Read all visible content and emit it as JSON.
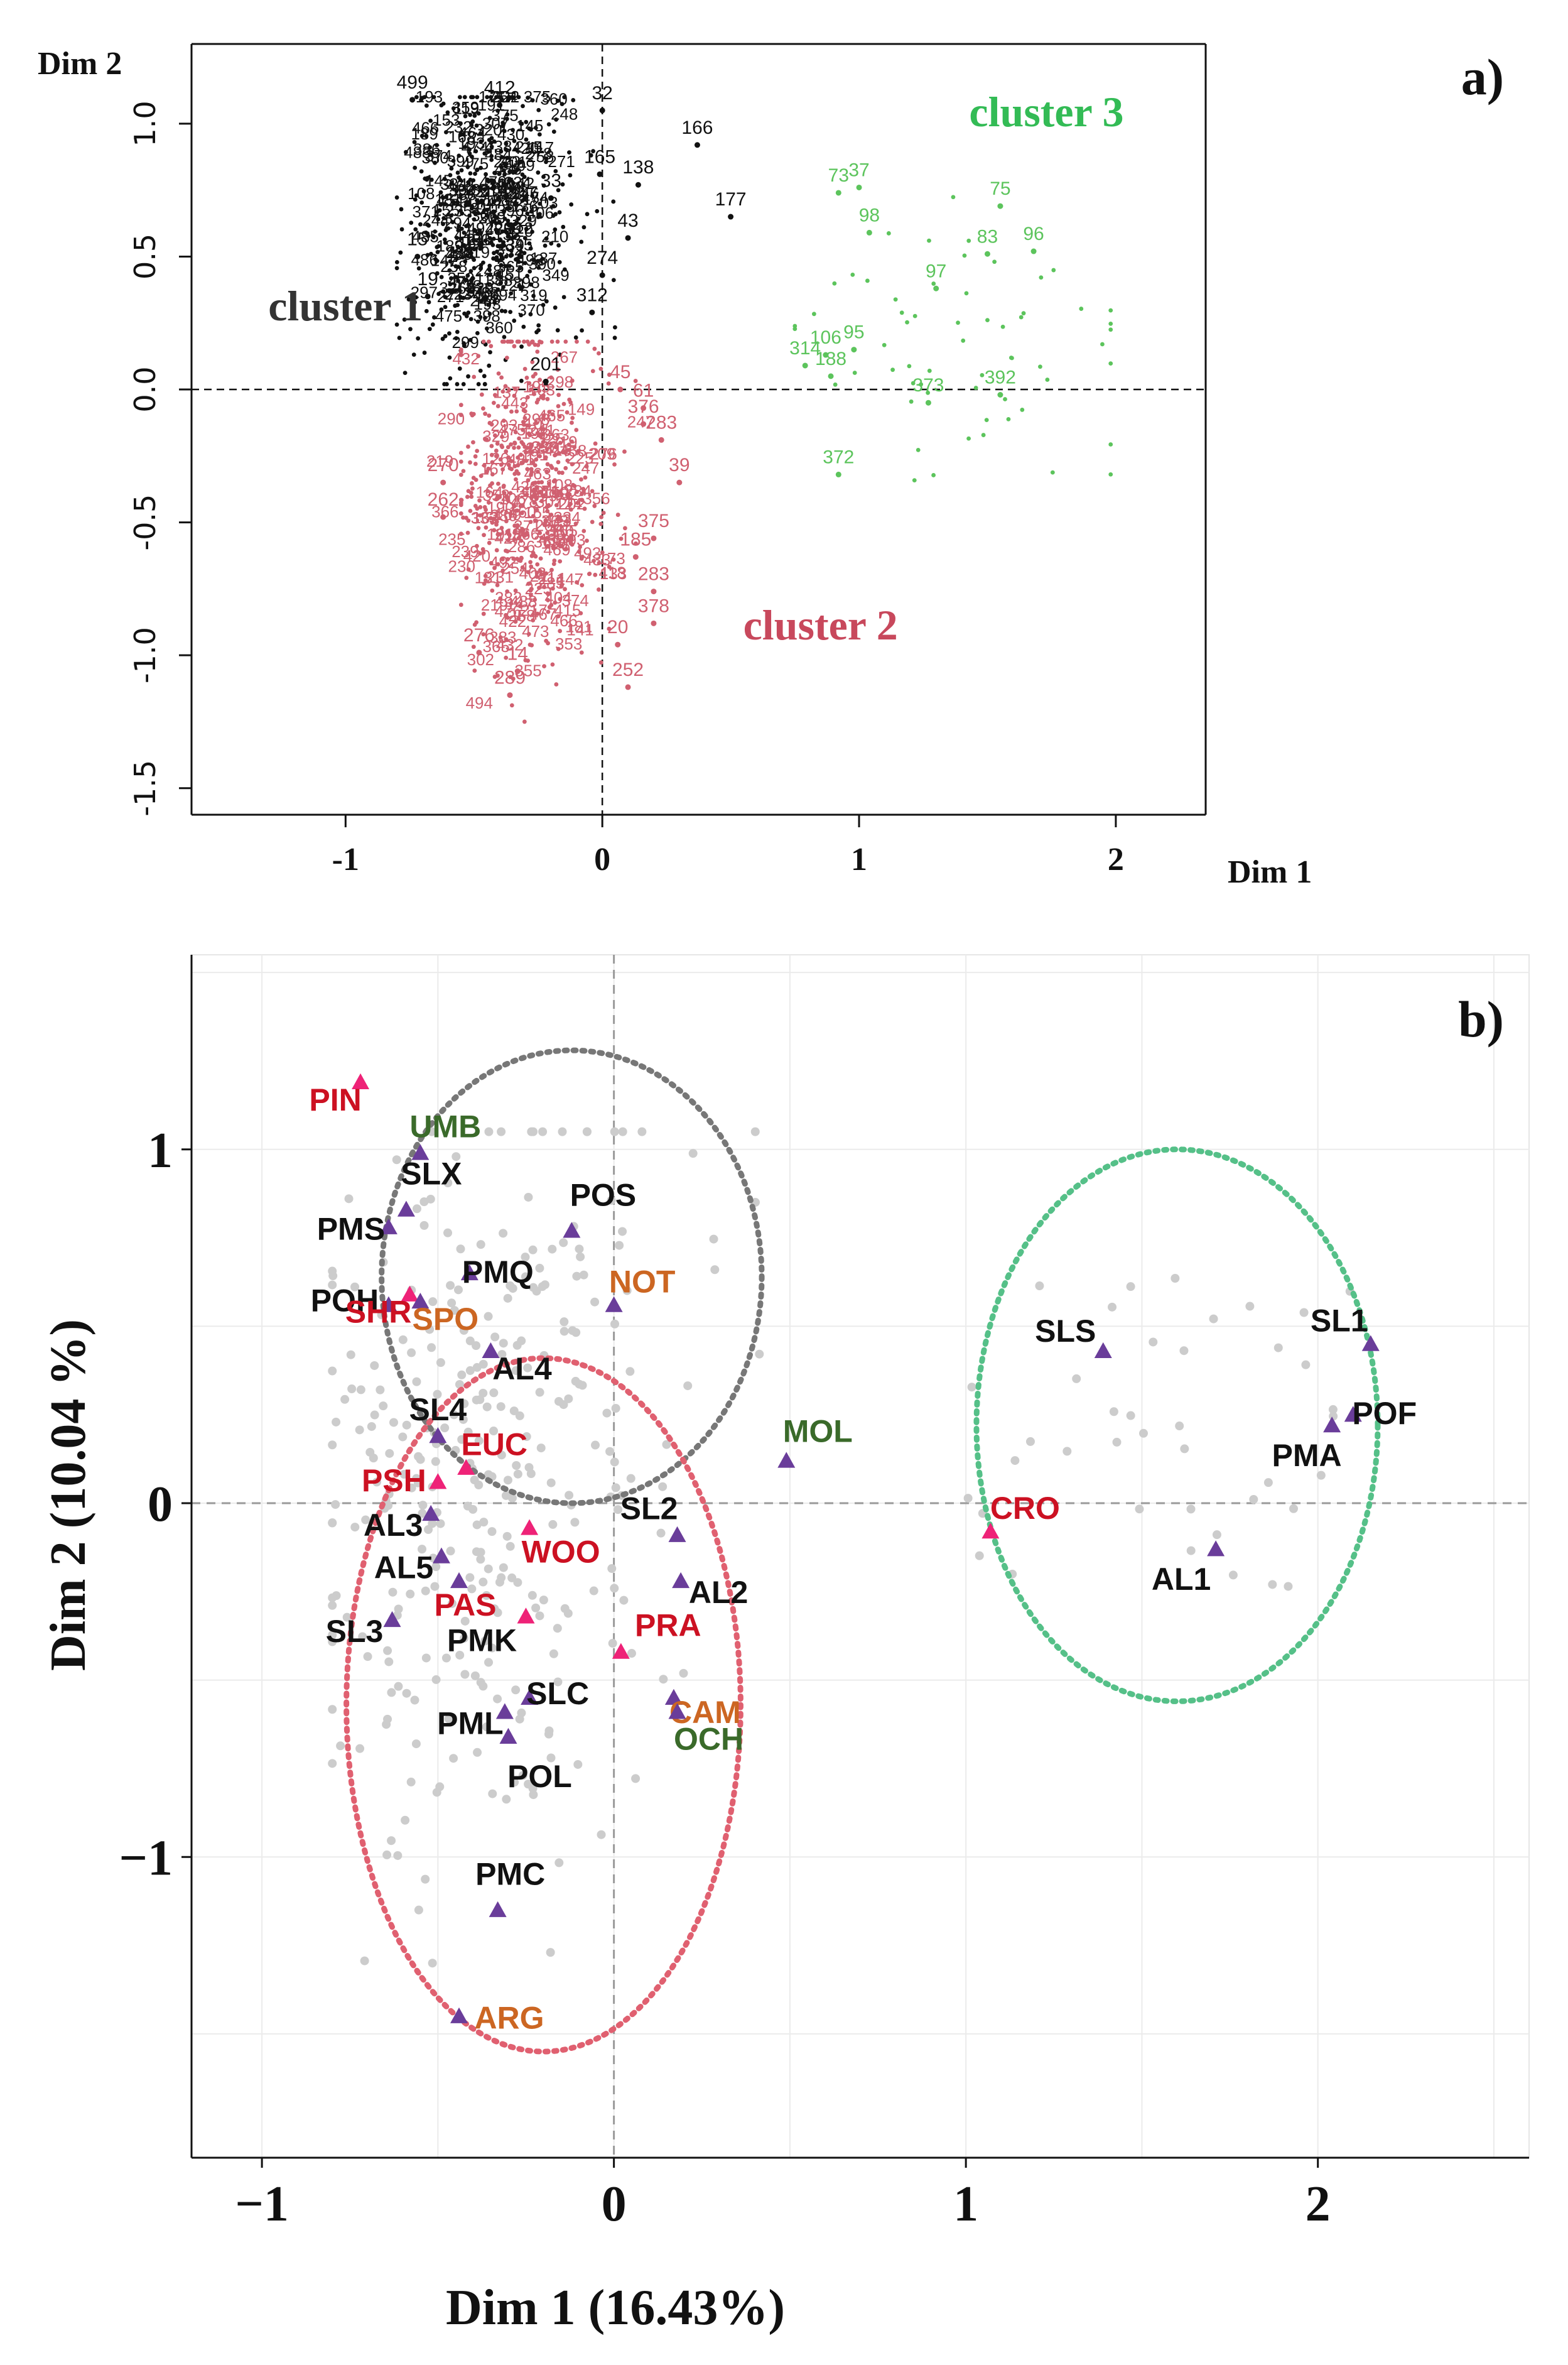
{
  "chart_data": [
    {
      "panel": "a)",
      "type": "scatter",
      "xlabel": "Dim 1",
      "ylabel": "Dim 2",
      "xlim": [
        -1.6,
        2.35
      ],
      "ylim": [
        -1.6,
        1.3
      ],
      "xticks": [
        -1,
        0,
        1,
        2
      ],
      "yticks": [
        -1.5,
        -1.0,
        -0.5,
        0.0,
        0.5,
        1.0
      ],
      "ytick_labels": [
        "-1.5",
        "-1.0",
        "-0.5",
        "0.0",
        "0.5",
        "1.0"
      ],
      "reference_lines": {
        "x": 0,
        "y": 0,
        "style": "dashed"
      },
      "grid": false,
      "colors": {
        "cluster 1": "#111111",
        "cluster 2": "#d06070",
        "cluster 3": "#5cc45c"
      },
      "cluster_labels": [
        {
          "text": "cluster 1",
          "color": "#333333",
          "x": -1.0,
          "y": 0.26
        },
        {
          "text": "cluster 2",
          "color": "#c8485c",
          "x": 0.85,
          "y": -0.94
        },
        {
          "text": "cluster 3",
          "color": "#33bb55",
          "x": 1.73,
          "y": 0.99
        }
      ],
      "labeled_points": [
        {
          "label": "166",
          "x": 0.37,
          "y": 0.92,
          "cluster": "cluster 1"
        },
        {
          "label": "177",
          "x": 0.5,
          "y": 0.65,
          "cluster": "cluster 1"
        },
        {
          "label": "32",
          "x": 0.0,
          "y": 1.05,
          "cluster": "cluster 1"
        },
        {
          "label": "138",
          "x": 0.14,
          "y": 0.77,
          "cluster": "cluster 1"
        },
        {
          "label": "165",
          "x": -0.01,
          "y": 0.81,
          "cluster": "cluster 1"
        },
        {
          "label": "43",
          "x": 0.1,
          "y": 0.57,
          "cluster": "cluster 1"
        },
        {
          "label": "274",
          "x": 0.0,
          "y": 0.43,
          "cluster": "cluster 1"
        },
        {
          "label": "499",
          "x": -0.74,
          "y": 1.09,
          "cluster": "cluster 1"
        },
        {
          "label": "412",
          "x": -0.4,
          "y": 1.07,
          "cluster": "cluster 1"
        },
        {
          "label": "33",
          "x": -0.2,
          "y": 0.72,
          "cluster": "cluster 1"
        },
        {
          "label": "15",
          "x": -0.72,
          "y": 0.5,
          "cluster": "cluster 1"
        },
        {
          "label": "19",
          "x": -0.68,
          "y": 0.35,
          "cluster": "cluster 1"
        },
        {
          "label": "201",
          "x": -0.22,
          "y": 0.03,
          "cluster": "cluster 1"
        },
        {
          "label": "312",
          "x": -0.04,
          "y": 0.29,
          "cluster": "cluster 1"
        },
        {
          "label": "283",
          "x": 0.23,
          "y": -0.19,
          "cluster": "cluster 2"
        },
        {
          "label": "376",
          "x": 0.16,
          "y": -0.13,
          "cluster": "cluster 2"
        },
        {
          "label": "61",
          "x": 0.16,
          "y": -0.07,
          "cluster": "cluster 2"
        },
        {
          "label": "45",
          "x": 0.07,
          "y": 0.0,
          "cluster": "cluster 2"
        },
        {
          "label": "39",
          "x": 0.3,
          "y": -0.35,
          "cluster": "cluster 2"
        },
        {
          "label": "375",
          "x": 0.2,
          "y": -0.56,
          "cluster": "cluster 2"
        },
        {
          "label": "185",
          "x": 0.13,
          "y": -0.63,
          "cluster": "cluster 2"
        },
        {
          "label": "283",
          "x": 0.2,
          "y": -0.76,
          "cluster": "cluster 2"
        },
        {
          "label": "378",
          "x": 0.2,
          "y": -0.88,
          "cluster": "cluster 2"
        },
        {
          "label": "20",
          "x": 0.06,
          "y": -0.96,
          "cluster": "cluster 2"
        },
        {
          "label": "252",
          "x": 0.1,
          "y": -1.12,
          "cluster": "cluster 2"
        },
        {
          "label": "276",
          "x": -0.48,
          "y": -0.99,
          "cluster": "cluster 2"
        },
        {
          "label": "14",
          "x": -0.33,
          "y": -1.06,
          "cluster": "cluster 2"
        },
        {
          "label": "289",
          "x": -0.36,
          "y": -1.15,
          "cluster": "cluster 2"
        },
        {
          "label": "270",
          "x": -0.62,
          "y": -0.35,
          "cluster": "cluster 2"
        },
        {
          "label": "262",
          "x": -0.62,
          "y": -0.48,
          "cluster": "cluster 2"
        },
        {
          "label": "73",
          "x": 0.92,
          "y": 0.74,
          "cluster": "cluster 3"
        },
        {
          "label": "37",
          "x": 1.0,
          "y": 0.76,
          "cluster": "cluster 3"
        },
        {
          "label": "98",
          "x": 1.04,
          "y": 0.59,
          "cluster": "cluster 3"
        },
        {
          "label": "75",
          "x": 1.55,
          "y": 0.69,
          "cluster": "cluster 3"
        },
        {
          "label": "83",
          "x": 1.5,
          "y": 0.51,
          "cluster": "cluster 3"
        },
        {
          "label": "96",
          "x": 1.68,
          "y": 0.52,
          "cluster": "cluster 3"
        },
        {
          "label": "97",
          "x": 1.3,
          "y": 0.38,
          "cluster": "cluster 3"
        },
        {
          "label": "106",
          "x": 0.87,
          "y": 0.13,
          "cluster": "cluster 3"
        },
        {
          "label": "95",
          "x": 0.98,
          "y": 0.15,
          "cluster": "cluster 3"
        },
        {
          "label": "314",
          "x": 0.79,
          "y": 0.09,
          "cluster": "cluster 3"
        },
        {
          "label": "188",
          "x": 0.89,
          "y": 0.05,
          "cluster": "cluster 3"
        },
        {
          "label": "372",
          "x": 0.92,
          "y": -0.32,
          "cluster": "cluster 3"
        },
        {
          "label": "373",
          "x": 1.27,
          "y": -0.05,
          "cluster": "cluster 3"
        },
        {
          "label": "392",
          "x": 1.55,
          "y": -0.02,
          "cluster": "cluster 3"
        }
      ]
    },
    {
      "panel": "b)",
      "type": "scatter",
      "xlabel": "Dim 1 (16.43%)",
      "ylabel": "Dim 2  (10.04 %)",
      "xlim": [
        -1.2,
        2.6
      ],
      "ylim": [
        -1.85,
        1.55
      ],
      "xticks": [
        -1,
        0,
        1,
        2
      ],
      "xtick_labels": [
        "−1",
        "0",
        "1",
        "2"
      ],
      "yticks": [
        -1,
        0,
        1
      ],
      "ytick_labels": [
        "−1",
        "0",
        "1"
      ],
      "grid": true,
      "reference_lines": {
        "x": 0,
        "y": 0,
        "style": "dashed"
      },
      "colors": {
        "magenta": "#ee2277",
        "purple": "#6a3d9a",
        "black": "#111111",
        "red": "#cc1122",
        "green": "#3a6a2a",
        "orange": "#cc6622",
        "grey_ellipse": "#777777",
        "red_ellipse": "#e06070",
        "green_ellipse": "#55c088",
        "background_points": "#cccccc"
      },
      "ellipses": [
        {
          "color": "grey",
          "cx": -0.12,
          "cy": 0.64,
          "rx": 0.54,
          "ry": 0.64
        },
        {
          "color": "red",
          "cx": -0.2,
          "cy": -0.57,
          "rx": 0.56,
          "ry": 0.98
        },
        {
          "color": "green",
          "cx": 1.6,
          "cy": 0.22,
          "rx": 0.57,
          "ry": 0.78
        }
      ],
      "points": [
        {
          "label": "PIN",
          "x": -0.72,
          "y": 1.19,
          "marker": "magenta",
          "text_color": "red"
        },
        {
          "label": "UMB",
          "x": -0.55,
          "y": 0.99,
          "marker": "purple",
          "text_color": "green"
        },
        {
          "label": "SLX",
          "x": -0.59,
          "y": 0.83,
          "marker": "purple",
          "text_color": "black"
        },
        {
          "label": "PMS",
          "x": -0.64,
          "y": 0.78,
          "marker": "purple",
          "text_color": "black"
        },
        {
          "label": "PMQ",
          "x": -0.41,
          "y": 0.65,
          "marker": "purple",
          "text_color": "black"
        },
        {
          "label": "POS",
          "x": -0.12,
          "y": 0.77,
          "marker": "purple",
          "text_color": "black"
        },
        {
          "label": "NOT",
          "x": 0.0,
          "y": 0.56,
          "marker": "purple",
          "text_color": "orange"
        },
        {
          "label": "POH",
          "x": -0.64,
          "y": 0.56,
          "marker": "purple",
          "text_color": "black"
        },
        {
          "label": "SHR",
          "x": -0.58,
          "y": 0.59,
          "marker": "magenta",
          "text_color": "red"
        },
        {
          "label": "SPO",
          "x": -0.55,
          "y": 0.57,
          "marker": "purple",
          "text_color": "orange"
        },
        {
          "label": "AL4",
          "x": -0.35,
          "y": 0.43,
          "marker": "purple",
          "text_color": "black"
        },
        {
          "label": "SL4",
          "x": -0.5,
          "y": 0.19,
          "marker": "purple",
          "text_color": "black"
        },
        {
          "label": "EUC",
          "x": -0.42,
          "y": 0.1,
          "marker": "magenta",
          "text_color": "red"
        },
        {
          "label": "PSH",
          "x": -0.5,
          "y": 0.06,
          "marker": "magenta",
          "text_color": "red"
        },
        {
          "label": "MOL",
          "x": 0.49,
          "y": 0.12,
          "marker": "purple",
          "text_color": "green"
        },
        {
          "label": "AL3",
          "x": -0.52,
          "y": -0.03,
          "marker": "purple",
          "text_color": "black"
        },
        {
          "label": "SL2",
          "x": 0.18,
          "y": -0.09,
          "marker": "purple",
          "text_color": "black"
        },
        {
          "label": "WOO",
          "x": -0.24,
          "y": -0.07,
          "marker": "magenta",
          "text_color": "red"
        },
        {
          "label": "AL5",
          "x": -0.49,
          "y": -0.15,
          "marker": "purple",
          "text_color": "black"
        },
        {
          "label": "AL2",
          "x": 0.19,
          "y": -0.22,
          "marker": "purple",
          "text_color": "black"
        },
        {
          "label": "PMK",
          "x": -0.25,
          "y": -0.32,
          "marker": "magenta",
          "text_color": "black"
        },
        {
          "label": "SL3",
          "x": -0.63,
          "y": -0.33,
          "marker": "purple",
          "text_color": "black"
        },
        {
          "label": "PRA",
          "x": 0.02,
          "y": -0.42,
          "marker": "magenta",
          "text_color": "red"
        },
        {
          "label": "PAS",
          "x": -0.44,
          "y": -0.22,
          "marker": "purple",
          "text_color": "red"
        },
        {
          "label": "CAM",
          "x": 0.17,
          "y": -0.55,
          "marker": "purple",
          "text_color": "orange"
        },
        {
          "label": "SLC",
          "x": -0.24,
          "y": -0.55,
          "marker": "purple",
          "text_color": "black"
        },
        {
          "label": "PML",
          "x": -0.31,
          "y": -0.59,
          "marker": "purple",
          "text_color": "black"
        },
        {
          "label": "OCH",
          "x": 0.18,
          "y": -0.59,
          "marker": "purple",
          "text_color": "green"
        },
        {
          "label": "POL",
          "x": -0.3,
          "y": -0.66,
          "marker": "purple",
          "text_color": "black"
        },
        {
          "label": "PMC",
          "x": -0.33,
          "y": -1.15,
          "marker": "purple",
          "text_color": "black"
        },
        {
          "label": "ARG",
          "x": -0.44,
          "y": -1.45,
          "marker": "purple",
          "text_color": "orange"
        },
        {
          "label": "SLS",
          "x": 1.39,
          "y": 0.43,
          "marker": "purple",
          "text_color": "black"
        },
        {
          "label": "SL1",
          "x": 2.15,
          "y": 0.45,
          "marker": "purple",
          "text_color": "black"
        },
        {
          "label": "POF",
          "x": 2.1,
          "y": 0.25,
          "marker": "purple",
          "text_color": "black"
        },
        {
          "label": "PMA",
          "x": 2.04,
          "y": 0.22,
          "marker": "purple",
          "text_color": "black"
        },
        {
          "label": "CRO",
          "x": 1.07,
          "y": -0.08,
          "marker": "magenta",
          "text_color": "red"
        },
        {
          "label": "AL1",
          "x": 1.71,
          "y": -0.13,
          "marker": "purple",
          "text_color": "black"
        }
      ]
    }
  ]
}
